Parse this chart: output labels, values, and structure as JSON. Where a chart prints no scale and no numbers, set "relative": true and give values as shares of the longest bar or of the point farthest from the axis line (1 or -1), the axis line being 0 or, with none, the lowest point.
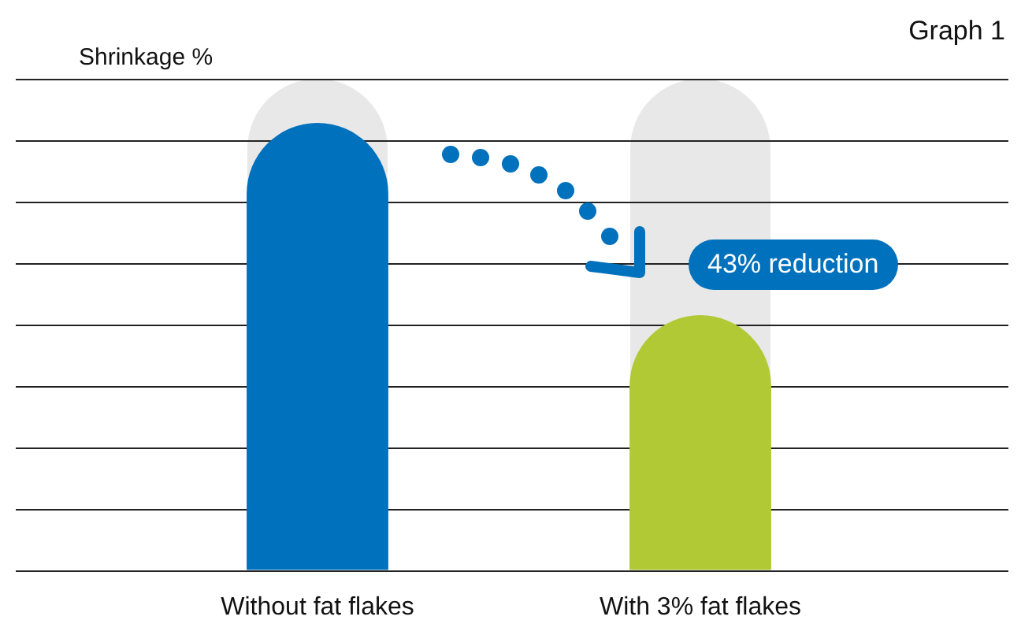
{
  "chart_data": {
    "type": "bar",
    "title": "Graph 1",
    "ylabel": "Shrinkage %",
    "categories": [
      "Without fat flakes",
      "With 3% fat flakes"
    ],
    "relative": true,
    "grid": "y",
    "legend": false,
    "series": [
      {
        "colors": [
          "#0071bc",
          "#b1c934"
        ],
        "values": [
          1,
          0.57
        ]
      }
    ],
    "annotations": [
      "43% reduction"
    ]
  }
}
